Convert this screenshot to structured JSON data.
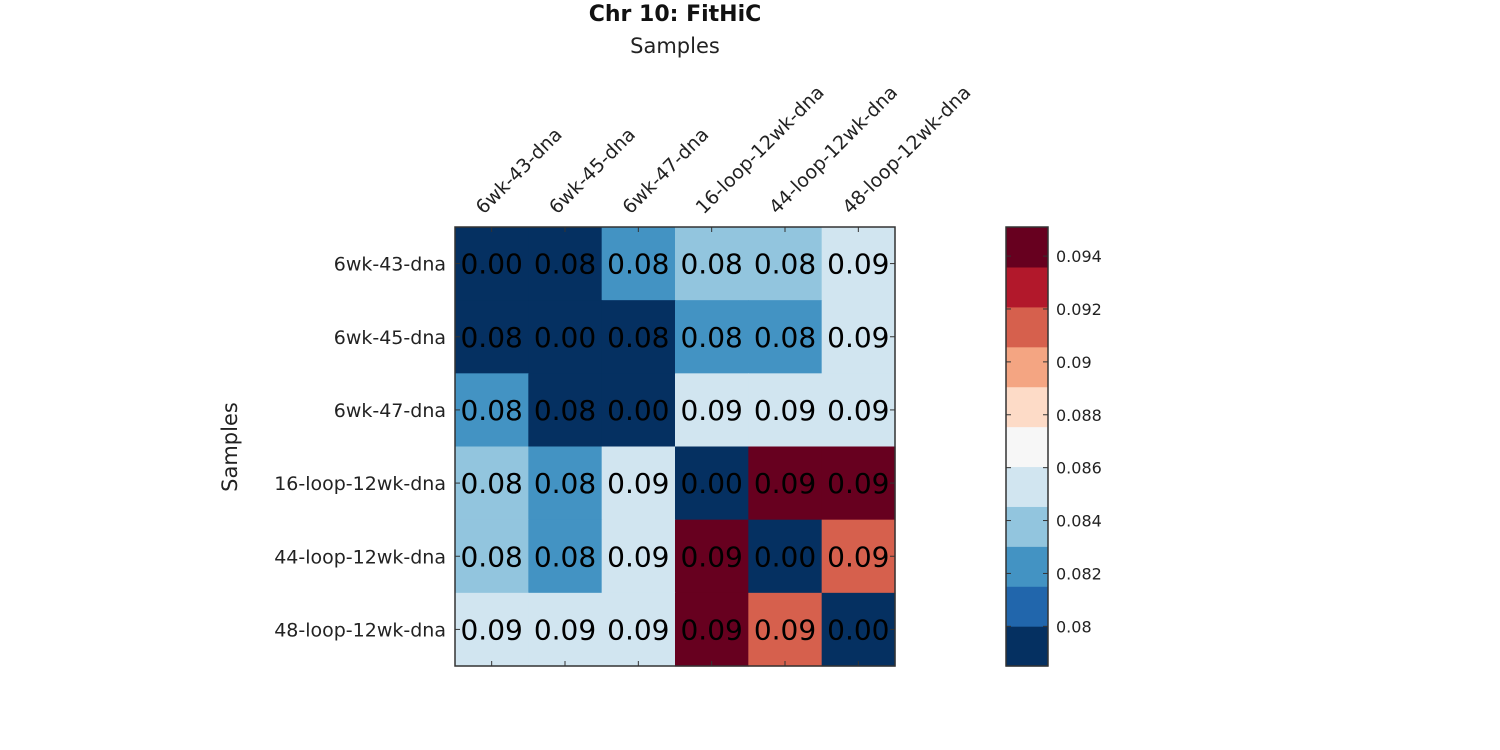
{
  "chart_data": {
    "type": "heatmap",
    "title": "Chr 10: FitHiC",
    "xlabel": "Samples",
    "ylabel": "Samples",
    "x_categories": [
      "6wk-43-dna",
      "6wk-45-dna",
      "6wk-47-dna",
      "16-loop-12wk-dna",
      "44-loop-12wk-dna",
      "48-loop-12wk-dna"
    ],
    "y_categories": [
      "6wk-43-dna",
      "6wk-45-dna",
      "6wk-47-dna",
      "16-loop-12wk-dna",
      "44-loop-12wk-dna",
      "48-loop-12wk-dna"
    ],
    "values": [
      [
        0.0,
        0.078,
        0.082,
        0.084,
        0.084,
        0.086
      ],
      [
        0.078,
        0.0,
        0.078,
        0.082,
        0.082,
        0.085
      ],
      [
        0.082,
        0.078,
        0.0,
        0.085,
        0.086,
        0.085
      ],
      [
        0.084,
        0.082,
        0.085,
        0.0,
        0.095,
        0.095
      ],
      [
        0.084,
        0.082,
        0.086,
        0.095,
        0.0,
        0.091
      ],
      [
        0.086,
        0.085,
        0.085,
        0.095,
        0.091,
        0.0
      ]
    ],
    "cell_labels": [
      [
        "0.00",
        "0.08",
        "0.08",
        "0.08",
        "0.08",
        "0.09"
      ],
      [
        "0.08",
        "0.00",
        "0.08",
        "0.08",
        "0.08",
        "0.09"
      ],
      [
        "0.08",
        "0.08",
        "0.00",
        "0.09",
        "0.09",
        "0.09"
      ],
      [
        "0.08",
        "0.08",
        "0.09",
        "0.00",
        "0.09",
        "0.09"
      ],
      [
        "0.08",
        "0.08",
        "0.09",
        "0.09",
        "0.00",
        "0.09"
      ],
      [
        "0.09",
        "0.09",
        "0.09",
        "0.09",
        "0.09",
        "0.00"
      ]
    ],
    "colorbar": {
      "range": [
        0.0785,
        0.0951
      ],
      "ticks": [
        0.08,
        0.082,
        0.084,
        0.086,
        0.088,
        0.09,
        0.092,
        0.094
      ],
      "tick_labels": [
        "0.08",
        "0.082",
        "0.084",
        "0.086",
        "0.088",
        "0.09",
        "0.092",
        "0.094"
      ],
      "colors": [
        "#053061",
        "#2166ac",
        "#4393c3",
        "#92c5de",
        "#d1e5f0",
        "#f7f7f7",
        "#fddbc7",
        "#f4a582",
        "#d6604d",
        "#b2182b",
        "#67001f"
      ]
    },
    "colormap": "RdBu_r (discrete)",
    "grid": false,
    "legend": "colorbar right"
  }
}
